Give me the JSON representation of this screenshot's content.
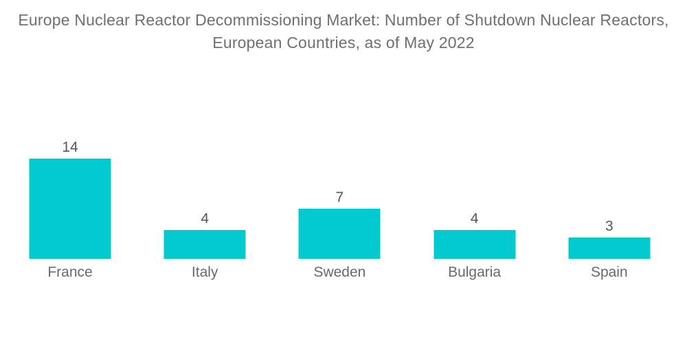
{
  "title": {
    "line1": "Europe Nuclear Reactor Decommissioning Market: Number of Shutdown Nuclear Reactors,",
    "line2": "European Countries, as of May 2022"
  },
  "colors": {
    "background": "#ffffff",
    "bar": "#03cad1",
    "title_text": "#6e6f72",
    "value_text": "#545557",
    "category_text": "#68696b"
  },
  "chart_data": {
    "type": "bar",
    "title": "Europe Nuclear Reactor Decommissioning Market: Number of Shutdown Nuclear Reactors, European Countries, as of May 2022",
    "categories": [
      "France",
      "Italy",
      "Sweden",
      "Bulgaria",
      "Spain"
    ],
    "values": [
      14,
      4,
      7,
      4,
      3
    ],
    "value_labels": [
      "14",
      "4",
      "7",
      "4",
      "3"
    ],
    "xlabel": "",
    "ylabel": "",
    "ylim": [
      0,
      14
    ],
    "grid": false,
    "legend": false,
    "axes_shown": false,
    "bar_color": "#03cad1",
    "orientation": "vertical"
  }
}
